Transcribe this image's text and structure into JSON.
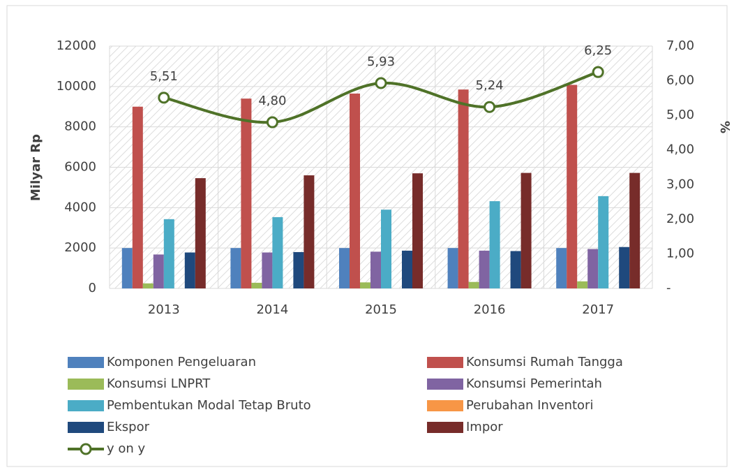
{
  "chart_data": {
    "type": "bar",
    "y_label": "Milyar Rp",
    "y2_label": "%",
    "categories": [
      "2013",
      "2014",
      "2015",
      "2016",
      "2017"
    ],
    "ylim": [
      0,
      12000
    ],
    "yticks": [
      0,
      2000,
      4000,
      6000,
      8000,
      10000,
      12000
    ],
    "y2lim": [
      0,
      7
    ],
    "y2ticks": [
      {
        "value": 0,
        "label": "-"
      },
      {
        "value": 1,
        "label": "1,00"
      },
      {
        "value": 2,
        "label": "2,00"
      },
      {
        "value": 3,
        "label": "3,00"
      },
      {
        "value": 4,
        "label": "4,00"
      },
      {
        "value": 5,
        "label": "5,00"
      },
      {
        "value": 6,
        "label": "6,00"
      },
      {
        "value": 7,
        "label": "7,00"
      }
    ],
    "grid": true,
    "series": [
      {
        "name": "Komponen Pengeluaran",
        "color": "#4f81bd",
        "values": [
          2000,
          2000,
          2000,
          2000,
          2000
        ]
      },
      {
        "name": "Konsumsi Rumah Tangga",
        "color": "#c0504d",
        "values": [
          9000,
          9400,
          9650,
          9850,
          10080
        ]
      },
      {
        "name": "Konsumsi LNPRT",
        "color": "#9bbb59",
        "values": [
          250,
          280,
          300,
          320,
          350
        ]
      },
      {
        "name": "Konsumsi Pemerintah",
        "color": "#8064a2",
        "values": [
          1680,
          1780,
          1820,
          1870,
          1950
        ]
      },
      {
        "name": "Pembentukan Modal Tetap Bruto",
        "color": "#4bacc6",
        "values": [
          3430,
          3530,
          3900,
          4320,
          4570
        ]
      },
      {
        "name": "Perubahan Inventori",
        "color": "#f79646",
        "values": [
          0,
          0,
          0,
          0,
          0
        ]
      },
      {
        "name": "Ekspor",
        "color": "#1f497d",
        "values": [
          1780,
          1800,
          1870,
          1850,
          2050
        ]
      },
      {
        "name": "Impor",
        "color": "#772c2a",
        "values": [
          5460,
          5600,
          5700,
          5720,
          5720
        ]
      },
      {
        "name": "y on y",
        "color": "#4f7228",
        "axis": "y2",
        "type": "line",
        "values": [
          5.51,
          4.8,
          5.93,
          5.24,
          6.25
        ],
        "value_labels": [
          "5,51",
          "4,80",
          "5,93",
          "5,24",
          "6,25"
        ]
      }
    ]
  }
}
